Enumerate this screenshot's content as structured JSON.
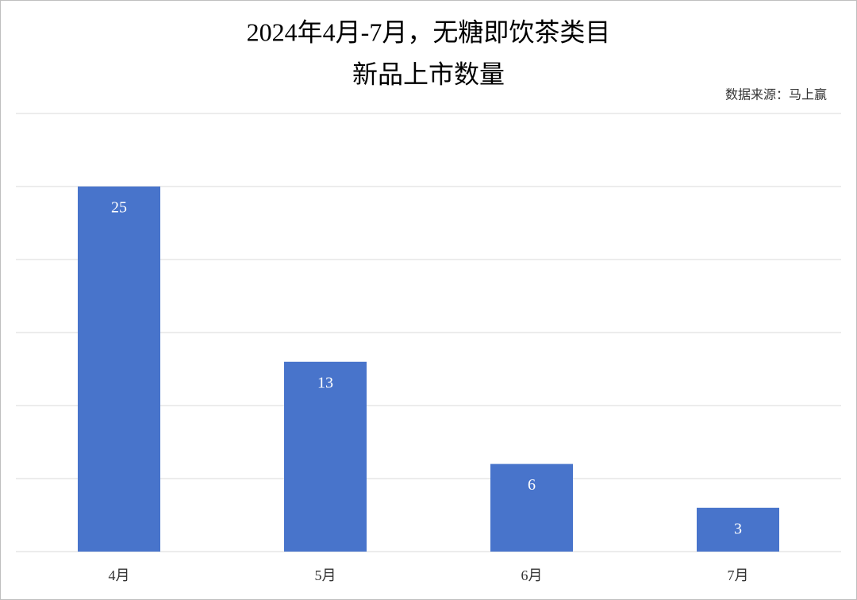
{
  "chart_data": {
    "type": "bar",
    "title": [
      "2024年4月-7月，无糖即饮茶类目",
      "新品上市数量"
    ],
    "source": "数据来源：马上赢",
    "categories": [
      "4月",
      "5月",
      "6月",
      "7月"
    ],
    "values": [
      25,
      13,
      6,
      3
    ],
    "color": "#4874cb",
    "ylim": [
      0,
      30
    ],
    "yticks": [
      0,
      5,
      10,
      15,
      20,
      25,
      30
    ],
    "grid": true,
    "data_labels": true
  }
}
